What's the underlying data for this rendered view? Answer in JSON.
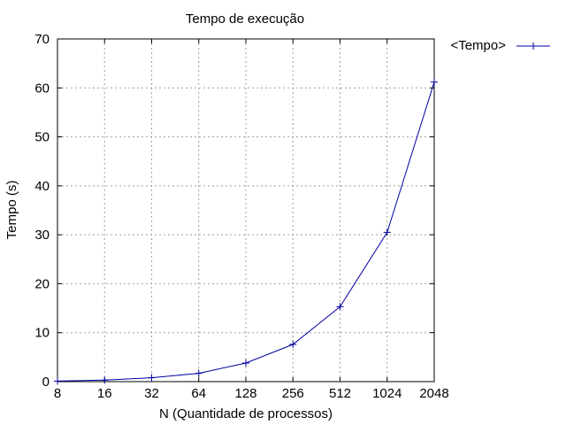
{
  "chart_data": {
    "type": "line",
    "title": "Tempo de execução",
    "xlabel": "N (Quantidade de processos)",
    "ylabel": "Tempo (s)",
    "x_scale": "log2",
    "x_ticks": [
      "8",
      "16",
      "32",
      "64",
      "128",
      "256",
      "512",
      "1024",
      "2048"
    ],
    "ylim": [
      0,
      70
    ],
    "y_ticks": [
      0,
      10,
      20,
      30,
      40,
      50,
      60,
      70
    ],
    "grid": true,
    "legend_position": "top-right-outside",
    "series": [
      {
        "name": "<Tempo>",
        "color": "#0000a0",
        "marker": "plus",
        "x": [
          8,
          16,
          32,
          64,
          128,
          256,
          512,
          1024,
          2048
        ],
        "y": [
          0.1,
          0.3,
          0.8,
          1.7,
          3.8,
          7.6,
          15.3,
          30.5,
          61.2
        ]
      }
    ]
  }
}
